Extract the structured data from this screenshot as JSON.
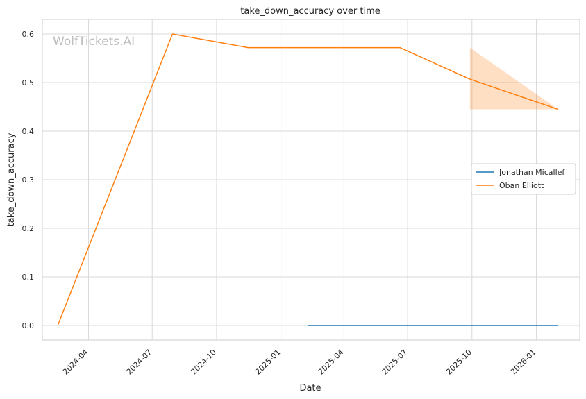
{
  "chart_data": {
    "type": "line",
    "title": "take_down_accuracy over time",
    "xlabel": "Date",
    "ylabel": "take_down_accuracy",
    "watermark": "WolfTickets.AI",
    "x_ticks": [
      "2024-04",
      "2024-07",
      "2024-10",
      "2025-01",
      "2025-04",
      "2025-07",
      "2025-10",
      "2026-01"
    ],
    "y_ticks": [
      0.0,
      0.1,
      0.2,
      0.3,
      0.4,
      0.5,
      0.6
    ],
    "y_tick_labels": [
      "0.0",
      "0.1",
      "0.2",
      "0.3",
      "0.4",
      "0.5",
      "0.6"
    ],
    "xlim": [
      "2024-01-26",
      "2026-03-04"
    ],
    "ylim": [
      -0.03,
      0.63
    ],
    "grid": true,
    "legend_position": "center-right",
    "series": [
      {
        "name": "Jonathan Micallef",
        "color": "#1f77b4",
        "x": [
          "2025-02-08",
          "2026-02-01"
        ],
        "y": [
          0.0,
          0.0
        ]
      },
      {
        "name": "Oban Elliott",
        "color": "#ff7f0e",
        "x": [
          "2024-02-17",
          "2024-07-30",
          "2024-11-15",
          "2025-06-20",
          "2025-09-28",
          "2026-02-01"
        ],
        "y": [
          0.0,
          0.6,
          0.572,
          0.572,
          0.507,
          0.445
        ]
      }
    ],
    "bands": [
      {
        "series": "Oban Elliott",
        "color": "#ff7f0e",
        "x": [
          "2025-09-28",
          "2026-02-01"
        ],
        "upper": [
          0.572,
          0.445
        ],
        "lower": [
          0.445,
          0.445
        ]
      }
    ]
  }
}
